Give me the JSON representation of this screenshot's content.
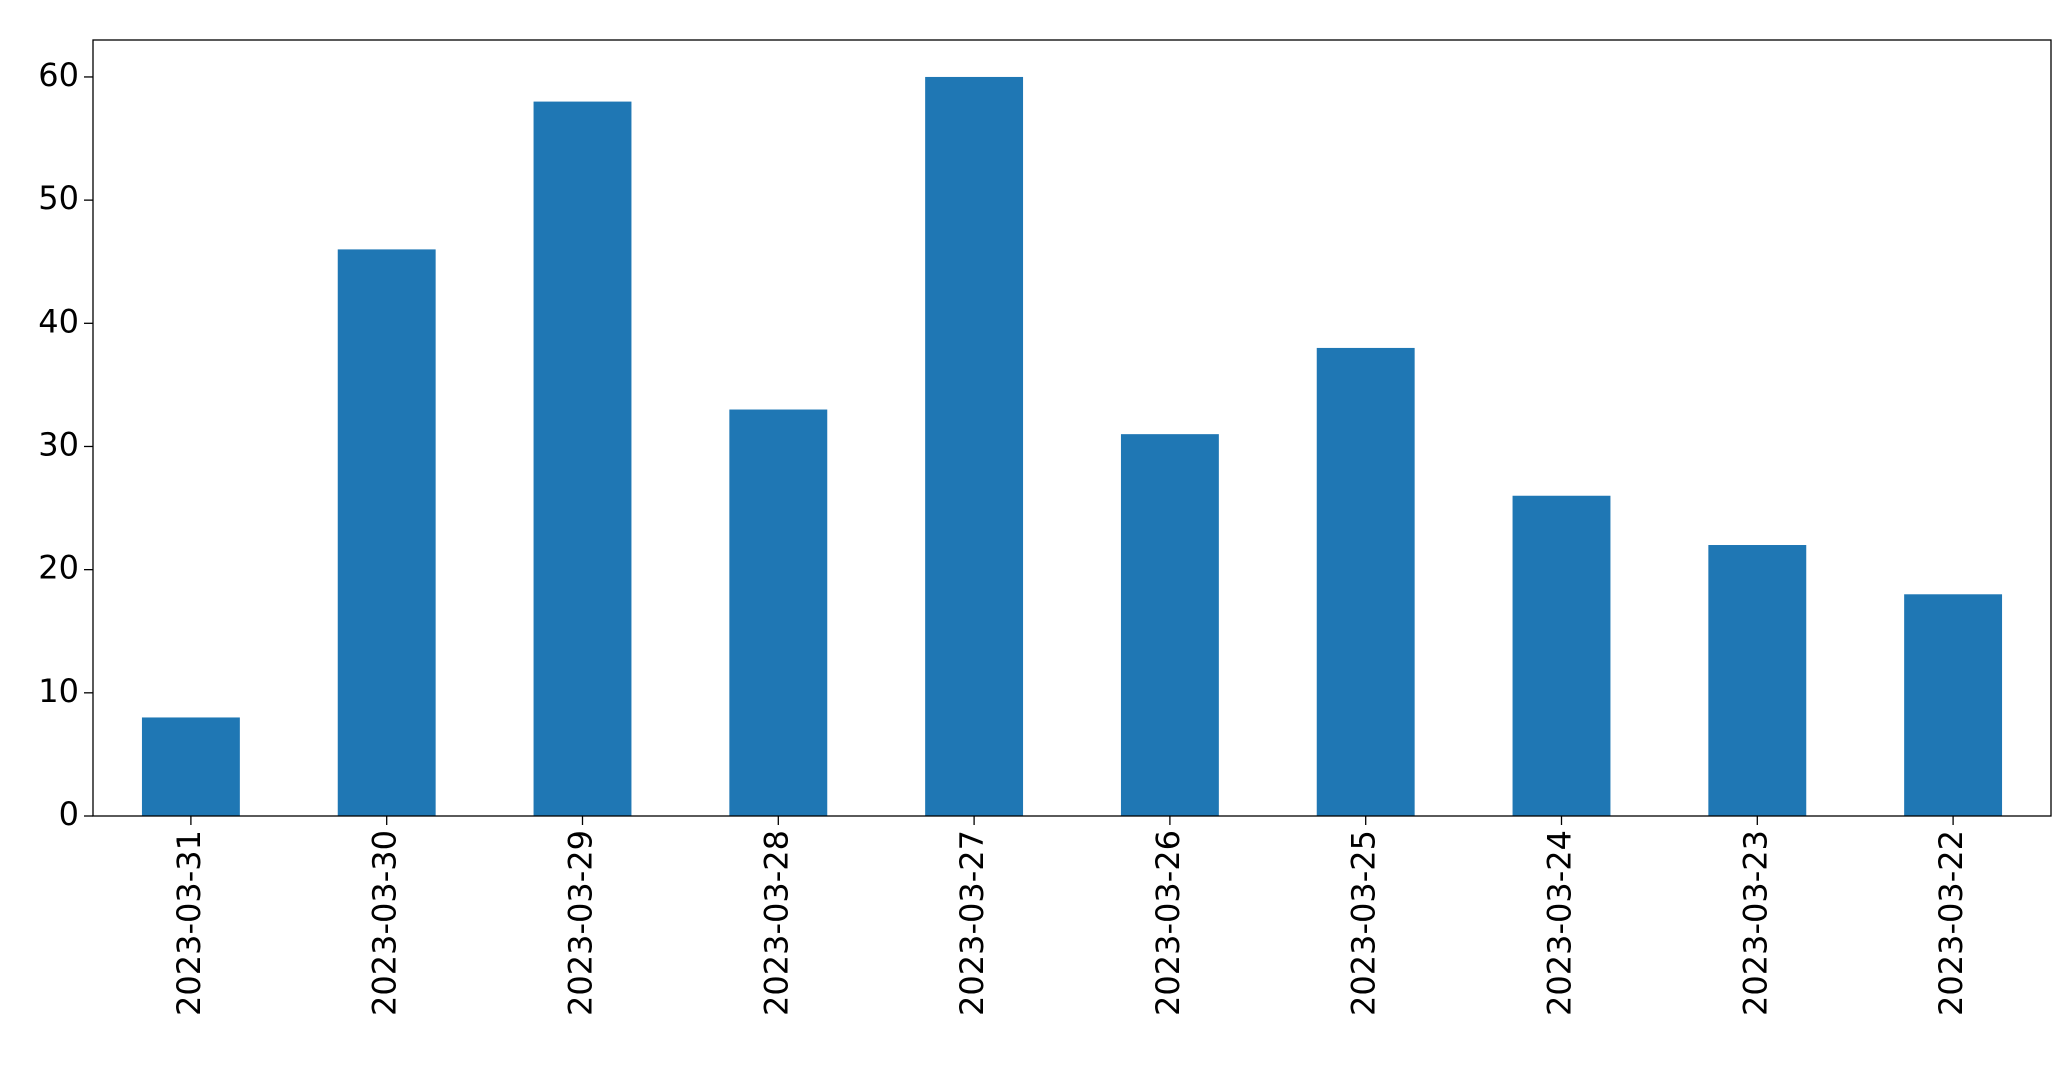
{
  "chart_data": {
    "type": "bar",
    "categories": [
      "2023-03-31",
      "2023-03-30",
      "2023-03-29",
      "2023-03-28",
      "2023-03-27",
      "2023-03-26",
      "2023-03-25",
      "2023-03-24",
      "2023-03-23",
      "2023-03-22"
    ],
    "values": [
      8,
      46,
      58,
      33,
      60,
      31,
      38,
      26,
      22,
      18
    ],
    "color": "#1f77b4",
    "ylim": [
      0,
      63
    ],
    "yticks": [
      0,
      10,
      20,
      30,
      40,
      50,
      60
    ],
    "grid": false
  }
}
